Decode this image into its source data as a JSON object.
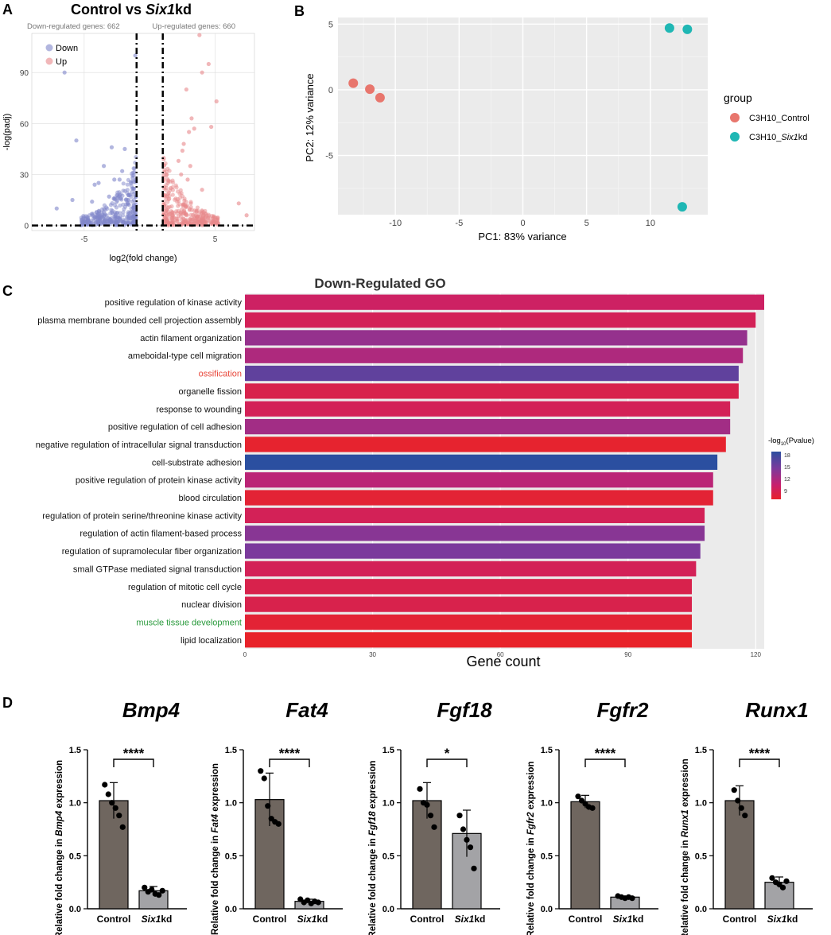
{
  "colors": {
    "down": "#7f86c9",
    "up": "#e8878a",
    "ctrl": "#e8766d",
    "kd": "#1fb7b4",
    "panel_bg": "#ebebeb",
    "grid": "#ffffff",
    "bar_ctrl": "#6f665f",
    "bar_kd": "#a3a3a6",
    "ossification": "#e8473a",
    "muscle": "#2a9a3c",
    "grad_18": "#2b4fa0",
    "grad_15": "#7b3a9c",
    "grad_12": "#c8206e",
    "grad_9": "#e8232a"
  },
  "chart_data": [
    {
      "id": "A",
      "type": "scatter",
      "panel_letter": "A",
      "title_pre": "Control vs ",
      "title_gene": "Six1",
      "title_post": "kd",
      "down_label": "Down-regulated genes: 662",
      "up_label": "Up-regulated genes: 660",
      "legend": [
        "Down",
        "Up"
      ],
      "xlabel": "log2(fold change)",
      "ylabel": "-log(padj)",
      "xlim": [
        -9,
        8
      ],
      "ylim": [
        -3,
        113
      ],
      "xticks": [
        "-5",
        "5"
      ],
      "xtick_values": [
        -5,
        5
      ],
      "yticks": [
        "0",
        "30",
        "60",
        "90"
      ],
      "ytick_values": [
        0,
        30,
        60,
        90
      ],
      "thresholds": {
        "log2fc": [
          -1,
          1
        ],
        "padj_line": 0
      },
      "highlight_down": [
        [
          -3.5,
          35
        ],
        [
          -2.7,
          27
        ],
        [
          -2.1,
          32
        ],
        [
          -3.9,
          25
        ],
        [
          -4.2,
          24
        ],
        [
          -1.5,
          18
        ],
        [
          -2.9,
          46
        ],
        [
          -1.1,
          100
        ],
        [
          -6.5,
          90
        ],
        [
          -5.6,
          50
        ],
        [
          -3.1,
          17
        ],
        [
          -1.8,
          15
        ],
        [
          -4.4,
          14
        ],
        [
          -1.3,
          28
        ],
        [
          -1.9,
          45
        ],
        [
          -2.3,
          27
        ],
        [
          -7.1,
          10
        ],
        [
          -5.9,
          15
        ]
      ],
      "highlight_up": [
        [
          3.8,
          112
        ],
        [
          4,
          90
        ],
        [
          4.5,
          95
        ],
        [
          2.8,
          80
        ],
        [
          3.2,
          63
        ],
        [
          2.6,
          48
        ],
        [
          5.1,
          73
        ],
        [
          3,
          55
        ],
        [
          2.5,
          44
        ],
        [
          2.2,
          38
        ],
        [
          3.1,
          35
        ],
        [
          4.7,
          58
        ],
        [
          2.4,
          30
        ],
        [
          1.6,
          22
        ],
        [
          4,
          21
        ],
        [
          1.3,
          30
        ],
        [
          3.4,
          57
        ],
        [
          6.8,
          13
        ],
        [
          7.4,
          6
        ],
        [
          2.9,
          27
        ]
      ]
    },
    {
      "id": "B",
      "type": "scatter",
      "panel_letter": "B",
      "xlabel": "PC1: 83% variance",
      "ylabel": "PC2: 12% variance",
      "xlim": [
        -14.5,
        14.5
      ],
      "ylim": [
        -9.5,
        5.5
      ],
      "xticks": [
        "-10",
        "-5",
        "0",
        "5",
        "10"
      ],
      "xtick_values": [
        -10,
        -5,
        0,
        5,
        10
      ],
      "yticks": [
        "-5",
        "0",
        "5"
      ],
      "ytick_values": [
        -5,
        0,
        5
      ],
      "legend_title": "group",
      "series": [
        {
          "name": "C3H10_Control",
          "name_pre": "C3H10_Control",
          "name_gene": "",
          "name_post": "",
          "points": [
            [
              -13.3,
              0.5
            ],
            [
              -12,
              0.05
            ],
            [
              -11.2,
              -0.6
            ]
          ]
        },
        {
          "name": "C3H10_Six1kd",
          "name_pre": "C3H10_",
          "name_gene": "Six1",
          "name_post": "kd",
          "points": [
            [
              11.5,
              4.7
            ],
            [
              12.9,
              4.6
            ],
            [
              12.5,
              -8.9
            ]
          ]
        }
      ]
    },
    {
      "id": "C",
      "type": "bar",
      "panel_letter": "C",
      "orientation": "horizontal",
      "title": "Down-Regulated GO",
      "xlabel": "Gene count",
      "xlim": [
        0,
        122
      ],
      "xticks": [
        "0",
        "30",
        "60",
        "90",
        "120"
      ],
      "xtick_values": [
        0,
        30,
        60,
        90,
        120
      ],
      "legend_title_pre": "-log",
      "legend_title_sub": "10",
      "legend_title_post": "(Pvalue)",
      "legend_ticks": [
        "18",
        "15",
        "12",
        "9"
      ],
      "legend_tick_values": [
        18,
        15,
        12,
        9
      ],
      "categories": [
        "positive regulation of kinase activity",
        "plasma membrane bounded cell projection assembly",
        "actin filament organization",
        "ameboidal-type cell migration",
        "ossification",
        "organelle fission",
        "response to wounding",
        "positive regulation of cell adhesion",
        "negative regulation of intracellular signal transduction",
        "cell-substrate adhesion",
        "positive regulation of protein kinase activity",
        "blood circulation",
        "regulation of protein serine/threonine kinase activity",
        "regulation of actin filament-based process",
        "regulation of supramolecular fiber organization",
        "small GTPase mediated signal transduction",
        "regulation of mitotic cell cycle",
        "nuclear division",
        "muscle tissue development",
        "lipid localization"
      ],
      "values": [
        122,
        120,
        118,
        117,
        116,
        116,
        114,
        114,
        113,
        111,
        110,
        110,
        108,
        108,
        107,
        106,
        105,
        105,
        105,
        105
      ],
      "neglog10p": [
        11.5,
        11,
        14,
        13,
        16,
        10.5,
        11,
        13.5,
        9.2,
        18,
        12.5,
        9.5,
        11,
        14.5,
        15,
        11,
        10.5,
        10.5,
        9.5,
        8.5
      ],
      "label_colors": [
        "",
        "",
        "",
        "",
        "ossification",
        "",
        "",
        "",
        "",
        "",
        "",
        "",
        "",
        "",
        "",
        "",
        "",
        "",
        "muscle",
        ""
      ]
    },
    {
      "id": "D",
      "type": "bar",
      "panel_letter": "D",
      "ylim": [
        0,
        1.5
      ],
      "yticks": [
        "0.0",
        "0.5",
        "1.0",
        "1.5"
      ],
      "ytick_values": [
        0,
        0.5,
        1.0,
        1.5
      ],
      "cat_control": "Control",
      "cat_kd_gene": "Six1",
      "cat_kd_post": "kd",
      "ylabel_pre": "Relative fold change in ",
      "ylabel_post": " expression",
      "plots": [
        {
          "gene": "Bmp4",
          "significance": "****",
          "values": [
            1.02,
            0.17
          ],
          "errors": [
            0.17,
            0.04
          ],
          "points_control": [
            1.17,
            1.08,
            1.0,
            0.95,
            0.88,
            0.77
          ],
          "points_kd": [
            0.2,
            0.16,
            0.18,
            0.14,
            0.13,
            0.17
          ]
        },
        {
          "gene": "Fat4",
          "significance": "****",
          "values": [
            1.03,
            0.07
          ],
          "errors": [
            0.25,
            0.02
          ],
          "points_control": [
            1.3,
            1.23,
            0.97,
            0.85,
            0.82,
            0.8
          ],
          "points_kd": [
            0.09,
            0.06,
            0.08,
            0.05,
            0.07,
            0.06
          ]
        },
        {
          "gene": "Fgf18",
          "significance": "*",
          "values": [
            1.02,
            0.71
          ],
          "errors": [
            0.17,
            0.22
          ],
          "points_control": [
            1.13,
            1.0,
            0.98,
            0.88,
            0.77
          ],
          "points_kd": [
            0.88,
            0.75,
            0.65,
            0.58,
            0.38
          ]
        },
        {
          "gene": "Fgfr2",
          "significance": "****",
          "values": [
            1.01,
            0.11
          ],
          "errors": [
            0.06,
            0.01
          ],
          "points_control": [
            1.06,
            1.02,
            0.99,
            0.96,
            0.95
          ],
          "points_kd": [
            0.12,
            0.11,
            0.1,
            0.11,
            0.1
          ]
        },
        {
          "gene": "Runx1",
          "significance": "****",
          "values": [
            1.02,
            0.25
          ],
          "errors": [
            0.14,
            0.05
          ],
          "points_control": [
            1.12,
            1.02,
            0.95,
            0.88
          ],
          "points_kd": [
            0.29,
            0.25,
            0.23,
            0.2,
            0.26
          ]
        }
      ]
    }
  ]
}
